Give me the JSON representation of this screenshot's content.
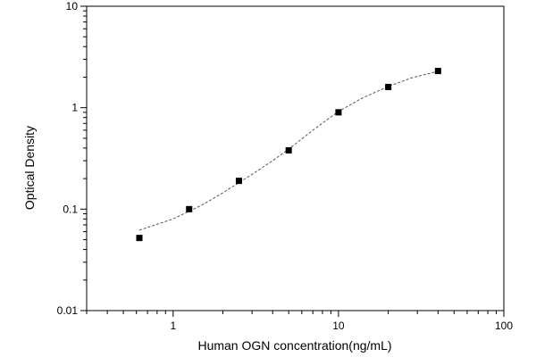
{
  "chart_data": {
    "type": "scatter",
    "xlabel": "Human OGN concentration(ng/mL)",
    "ylabel": "Optical Density",
    "x_scale": "log",
    "y_scale": "log",
    "xlim": [
      0.3,
      100
    ],
    "ylim": [
      0.01,
      10
    ],
    "x_ticks": [
      {
        "value": 1,
        "label": "1"
      },
      {
        "value": 10,
        "label": "10"
      },
      {
        "value": 100,
        "label": "100"
      }
    ],
    "y_ticks": [
      {
        "value": 0.01,
        "label": "0.01"
      },
      {
        "value": 0.1,
        "label": "0.1"
      },
      {
        "value": 1,
        "label": "1"
      },
      {
        "value": 10,
        "label": "10"
      }
    ],
    "grid": false,
    "series": [
      {
        "marker": "square",
        "color": "#000000",
        "points": [
          {
            "x": 0.625,
            "y": 0.052
          },
          {
            "x": 1.25,
            "y": 0.1
          },
          {
            "x": 2.5,
            "y": 0.19
          },
          {
            "x": 5,
            "y": 0.38
          },
          {
            "x": 10,
            "y": 0.9
          },
          {
            "x": 20,
            "y": 1.6
          },
          {
            "x": 40,
            "y": 2.3
          }
        ]
      }
    ],
    "fit_curve": {
      "style": "dashed",
      "color": "#555555",
      "points": [
        {
          "x": 0.625,
          "y": 0.062
        },
        {
          "x": 1,
          "y": 0.08
        },
        {
          "x": 1.5,
          "y": 0.11
        },
        {
          "x": 2,
          "y": 0.145
        },
        {
          "x": 3,
          "y": 0.22
        },
        {
          "x": 4,
          "y": 0.3
        },
        {
          "x": 5,
          "y": 0.39
        },
        {
          "x": 7,
          "y": 0.6
        },
        {
          "x": 10,
          "y": 0.92
        },
        {
          "x": 14,
          "y": 1.25
        },
        {
          "x": 20,
          "y": 1.62
        },
        {
          "x": 28,
          "y": 1.98
        },
        {
          "x": 40,
          "y": 2.28
        }
      ]
    }
  }
}
